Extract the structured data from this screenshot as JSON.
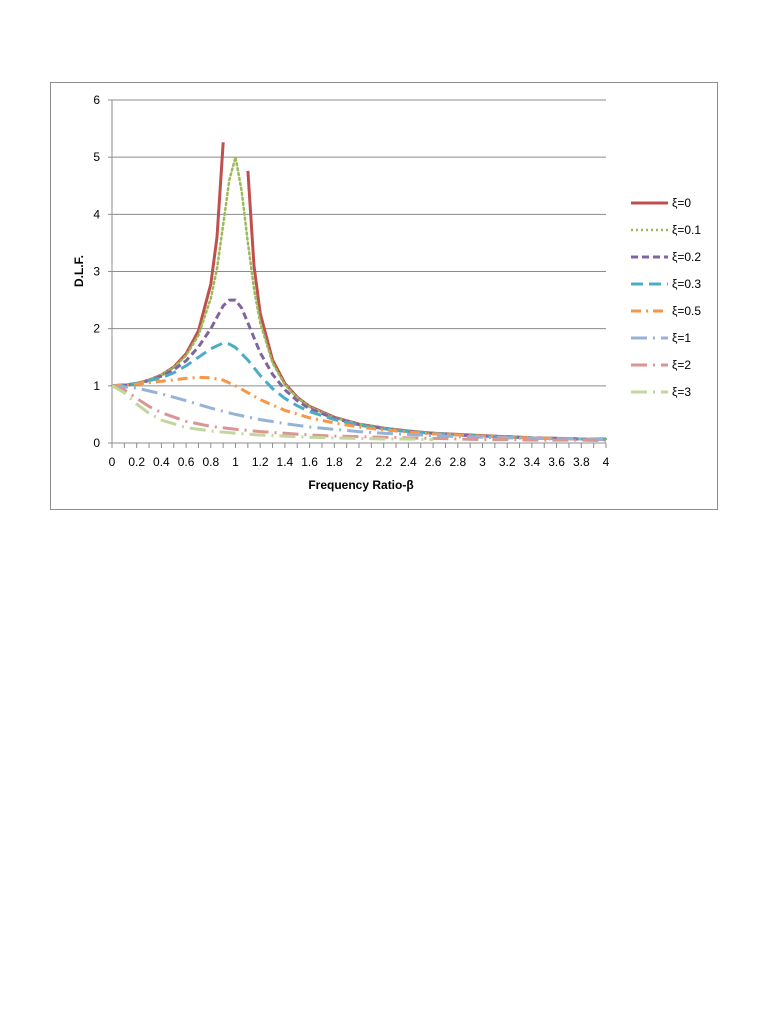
{
  "chart_data": {
    "type": "line",
    "title": "",
    "xlabel": "Frequency Ratio-β",
    "ylabel": "D.L.F.",
    "xlim": [
      0,
      4
    ],
    "ylim": [
      0,
      6
    ],
    "x_ticks": [
      "0",
      "0.2",
      "0.4",
      "0.6",
      "0.8",
      "1",
      "1.2",
      "1.4",
      "1.6",
      "1.8",
      "2",
      "2.2",
      "2.4",
      "2.6",
      "2.8",
      "3",
      "3.2",
      "3.4",
      "3.6",
      "3.8",
      "4"
    ],
    "y_ticks": [
      "0",
      "1",
      "2",
      "3",
      "4",
      "5",
      "6"
    ],
    "grid": "horizontal",
    "legend_position": "right",
    "series": [
      {
        "name": "ξ=0",
        "color": "#c0504d",
        "dash": "solid",
        "x": [
          0,
          0.1,
          0.2,
          0.3,
          0.4,
          0.5,
          0.6,
          0.7,
          0.8,
          0.85,
          0.9,
          null,
          1.1,
          1.15,
          1.2,
          1.3,
          1.4,
          1.5,
          1.6,
          1.8,
          2,
          2.2,
          2.4,
          2.6,
          2.8,
          3,
          3.2,
          3.4,
          3.6,
          3.8,
          4
        ],
        "y": [
          1,
          1.01,
          1.04,
          1.1,
          1.19,
          1.33,
          1.56,
          1.96,
          2.78,
          3.6,
          5.26,
          null,
          4.76,
          3.1,
          2.27,
          1.45,
          1.04,
          0.8,
          0.64,
          0.45,
          0.33,
          0.26,
          0.21,
          0.17,
          0.15,
          0.13,
          0.11,
          0.09,
          0.08,
          0.07,
          0.07
        ]
      },
      {
        "name": "ξ=0.1",
        "color": "#9bbb59",
        "dash": "dotted",
        "x": [
          0,
          0.1,
          0.2,
          0.3,
          0.4,
          0.5,
          0.6,
          0.7,
          0.8,
          0.85,
          0.9,
          0.95,
          1,
          1.05,
          1.1,
          1.15,
          1.2,
          1.3,
          1.4,
          1.5,
          1.6,
          1.8,
          2,
          2.2,
          2.4,
          2.6,
          2.8,
          3,
          3.2,
          3.4,
          3.6,
          3.8,
          4
        ],
        "y": [
          1,
          1.01,
          1.04,
          1.1,
          1.19,
          1.32,
          1.53,
          1.88,
          2.53,
          3.05,
          3.82,
          4.6,
          5,
          4.4,
          3.5,
          2.7,
          2.1,
          1.4,
          1.02,
          0.79,
          0.63,
          0.44,
          0.33,
          0.26,
          0.21,
          0.17,
          0.15,
          0.12,
          0.11,
          0.09,
          0.08,
          0.07,
          0.07
        ]
      },
      {
        "name": "ξ=0.2",
        "color": "#8064a2",
        "dash": "dashed",
        "x": [
          0,
          0.1,
          0.2,
          0.3,
          0.4,
          0.5,
          0.6,
          0.7,
          0.8,
          0.85,
          0.9,
          0.95,
          1,
          1.05,
          1.1,
          1.2,
          1.3,
          1.4,
          1.5,
          1.6,
          1.8,
          2,
          2.2,
          2.4,
          2.6,
          2.8,
          3,
          3.2,
          3.4,
          3.6,
          3.8,
          4
        ],
        "y": [
          1,
          1.01,
          1.04,
          1.09,
          1.17,
          1.28,
          1.44,
          1.68,
          2.0,
          2.2,
          2.4,
          2.5,
          2.5,
          2.36,
          2.1,
          1.58,
          1.2,
          0.93,
          0.74,
          0.6,
          0.43,
          0.32,
          0.25,
          0.2,
          0.17,
          0.14,
          0.12,
          0.11,
          0.09,
          0.08,
          0.07,
          0.07
        ]
      },
      {
        "name": "ξ=0.3",
        "color": "#4bacc6",
        "dash": "longdash",
        "x": [
          0,
          0.2,
          0.4,
          0.5,
          0.6,
          0.7,
          0.8,
          0.9,
          0.95,
          1,
          1.1,
          1.2,
          1.3,
          1.4,
          1.5,
          1.6,
          1.8,
          2,
          2.2,
          2.4,
          2.6,
          2.8,
          3,
          3.2,
          3.4,
          3.6,
          3.8,
          4
        ],
        "y": [
          1,
          1.04,
          1.14,
          1.23,
          1.35,
          1.5,
          1.65,
          1.75,
          1.73,
          1.67,
          1.45,
          1.18,
          0.95,
          0.78,
          0.65,
          0.55,
          0.41,
          0.31,
          0.25,
          0.2,
          0.17,
          0.14,
          0.12,
          0.1,
          0.09,
          0.08,
          0.07,
          0.06
        ]
      },
      {
        "name": "ξ=0.5",
        "color": "#f79646",
        "dash": "dashdot",
        "x": [
          0,
          0.2,
          0.4,
          0.6,
          0.7,
          0.8,
          0.9,
          1,
          1.1,
          1.2,
          1.4,
          1.6,
          1.8,
          2,
          2.2,
          2.4,
          2.6,
          2.8,
          3,
          3.2,
          3.4,
          3.6,
          3.8,
          4
        ],
        "y": [
          1,
          1.03,
          1.08,
          1.13,
          1.15,
          1.14,
          1.1,
          1.0,
          0.88,
          0.76,
          0.57,
          0.44,
          0.35,
          0.28,
          0.23,
          0.19,
          0.16,
          0.14,
          0.12,
          0.1,
          0.09,
          0.08,
          0.07,
          0.06
        ]
      },
      {
        "name": "ξ=1",
        "color": "#95b3d7",
        "dash": "longdashdot",
        "x": [
          0,
          0.2,
          0.4,
          0.6,
          0.8,
          1,
          1.2,
          1.4,
          1.6,
          1.8,
          2,
          2.2,
          2.4,
          2.6,
          2.8,
          3,
          3.2,
          3.4,
          3.6,
          3.8,
          4
        ],
        "y": [
          1,
          0.96,
          0.86,
          0.74,
          0.61,
          0.5,
          0.41,
          0.34,
          0.28,
          0.24,
          0.2,
          0.17,
          0.15,
          0.13,
          0.11,
          0.1,
          0.09,
          0.08,
          0.07,
          0.07,
          0.06
        ]
      },
      {
        "name": "ξ=2",
        "color": "#d99694",
        "dash": "longdashdot",
        "x": [
          0,
          0.1,
          0.2,
          0.3,
          0.4,
          0.6,
          0.8,
          1,
          1.2,
          1.4,
          1.6,
          1.8,
          2,
          2.2,
          2.4,
          2.6,
          2.8,
          3,
          3.2,
          3.4,
          3.6,
          3.8,
          4
        ],
        "y": [
          1,
          0.93,
          0.78,
          0.64,
          0.53,
          0.38,
          0.29,
          0.24,
          0.2,
          0.17,
          0.14,
          0.12,
          0.11,
          0.1,
          0.09,
          0.08,
          0.07,
          0.06,
          0.06,
          0.05,
          0.05,
          0.05,
          0.04
        ]
      },
      {
        "name": "ξ=3",
        "color": "#c3d69b",
        "dash": "longdashdot",
        "x": [
          0,
          0.1,
          0.2,
          0.3,
          0.4,
          0.6,
          0.8,
          1,
          1.2,
          1.4,
          1.6,
          1.8,
          2,
          2.2,
          2.4,
          2.6
        ],
        "y": [
          1,
          0.88,
          0.68,
          0.52,
          0.4,
          0.27,
          0.21,
          0.17,
          0.14,
          0.12,
          0.1,
          0.09,
          0.08,
          0.07,
          0.07,
          0.06
        ]
      }
    ]
  }
}
